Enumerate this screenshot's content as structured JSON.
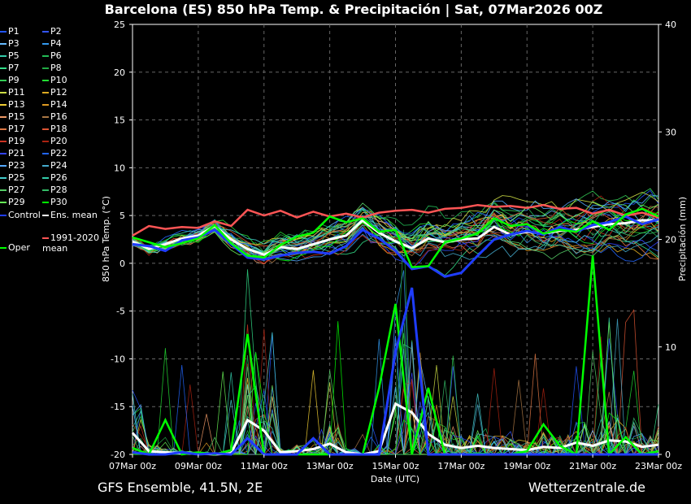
{
  "title": "Barcelona  (ES)  850 hPa Temp. & Precipitación | Sat, 07Mar2026 00Z",
  "footer": {
    "model": "GFS Ensemble, 41.5N, 2E",
    "site": "Wetterzentrale.de"
  },
  "legend": {
    "members": [
      "P1",
      "P2",
      "P3",
      "P4",
      "P5",
      "P6",
      "P7",
      "P8",
      "P9",
      "P10",
      "P11",
      "P12",
      "P13",
      "P14",
      "P15",
      "P16",
      "P17",
      "P18",
      "P19",
      "P20",
      "P21",
      "P22",
      "P23",
      "P24",
      "P25",
      "P26",
      "P27",
      "P28",
      "P29",
      "P30"
    ],
    "member_colors": [
      "#2255ff",
      "#3355ff",
      "#66bbff",
      "#3399ee",
      "#33ccaa",
      "#22bb55",
      "#33dd88",
      "#22aa44",
      "#33cc55",
      "#22dd33",
      "#ccdd44",
      "#ddaa22",
      "#eecc33",
      "#dd9922",
      "#ee9966",
      "#aa7744",
      "#dd7744",
      "#dd5533",
      "#cc3322",
      "#aa2211",
      "#3344ff",
      "#2266ff",
      "#55aaff",
      "#44aacc",
      "#44cccc",
      "#33ccaa",
      "#55cc66",
      "#33bb66",
      "#66ee55",
      "#00ff00"
    ],
    "control": "Control",
    "mean": "Ens. mean",
    "clim": "1991-2020 mean",
    "oper": "Oper",
    "colors": {
      "control": "#1f3dff",
      "mean": "#ffffff",
      "clim": "#ff5555",
      "oper": "#00ff00"
    }
  },
  "chart_data": {
    "type": "line",
    "xlabel": "Date (UTC)",
    "ylabel": "850 hPa Temp. (°C)",
    "y2label": "Precipitación (mm)",
    "x_ticks": [
      "07Mar 00z",
      "09Mar 00z",
      "11Mar 00z",
      "13Mar 00z",
      "15Mar 00z",
      "17Mar 00z",
      "19Mar 00z",
      "21Mar 00z",
      "23Mar 00z"
    ],
    "x_range_days": [
      0,
      16
    ],
    "ylim": [
      -20,
      25
    ],
    "y_ticks": [
      -20,
      -15,
      -10,
      -5,
      0,
      5,
      10,
      15,
      20,
      25
    ],
    "y2lim": [
      0,
      40
    ],
    "y2_ticks": [
      0,
      10,
      20,
      30,
      40
    ],
    "grid": true,
    "series_temp": [
      {
        "name": "1991-2020 mean",
        "days": [
          0,
          0.5,
          1,
          1.5,
          2,
          2.5,
          3,
          3.5,
          4,
          4.5,
          5,
          5.5,
          6,
          6.5,
          7,
          7.5,
          8,
          8.5,
          9,
          9.5,
          10,
          10.5,
          11,
          11.5,
          12,
          12.5,
          13,
          13.5,
          14,
          14.5,
          15,
          15.5,
          16
        ],
        "values": [
          2.9,
          3.9,
          3.6,
          3.8,
          3.7,
          4.4,
          3.9,
          5.6,
          5.0,
          5.5,
          4.8,
          5.4,
          4.9,
          5.2,
          4.8,
          5.3,
          5.5,
          5.6,
          5.3,
          5.7,
          5.8,
          6.1,
          5.9,
          6.0,
          5.8,
          6.1,
          5.7,
          5.8,
          5.2,
          5.6,
          5.0,
          5.3,
          4.8
        ]
      },
      {
        "name": "Ens. mean",
        "days": [
          0,
          0.5,
          1,
          1.5,
          2,
          2.5,
          3,
          3.5,
          4,
          4.5,
          5,
          5.5,
          6,
          6.5,
          7,
          7.5,
          8,
          8.5,
          9,
          9.5,
          10,
          10.5,
          11,
          11.5,
          12,
          12.5,
          13,
          13.5,
          14,
          14.5,
          15,
          15.5,
          16
        ],
        "values": [
          2.3,
          1.5,
          2.0,
          2.6,
          2.9,
          3.9,
          2.5,
          1.5,
          0.9,
          1.7,
          1.5,
          2.0,
          2.5,
          2.9,
          4.5,
          3.2,
          2.3,
          1.6,
          2.6,
          2.2,
          2.5,
          2.6,
          3.8,
          3.0,
          3.3,
          3.1,
          3.4,
          3.5,
          3.8,
          4.1,
          4.2,
          4.5,
          4.5
        ]
      },
      {
        "name": "Control",
        "days": [
          0,
          0.5,
          1,
          1.5,
          2,
          2.5,
          3,
          3.5,
          4,
          4.5,
          5,
          5.5,
          6,
          6.5,
          7,
          7.5,
          8,
          8.5,
          9,
          9.5,
          10,
          10.5,
          11,
          11.5,
          12,
          12.5,
          13,
          13.5,
          14,
          14.5,
          15,
          15.5,
          16
        ],
        "values": [
          2.0,
          1.8,
          1.3,
          2.4,
          2.7,
          3.5,
          2.0,
          0.6,
          0.4,
          0.8,
          1.1,
          1.2,
          1.0,
          1.8,
          3.5,
          2.6,
          1.3,
          -0.6,
          -0.3,
          -1.4,
          -1.0,
          0.8,
          2.5,
          3.0,
          3.4,
          3.0,
          3.8,
          3.3,
          4.0,
          4.3,
          4.9,
          4.1,
          4.6
        ]
      },
      {
        "name": "Oper",
        "days": [
          0,
          0.5,
          1,
          1.5,
          2,
          2.5,
          3,
          3.5,
          4,
          4.5,
          5,
          5.5,
          6,
          6.5,
          7,
          7.5,
          8,
          8.5,
          9,
          9.5,
          10,
          10.5,
          11,
          11.5,
          12,
          12.5,
          13,
          13.5,
          14,
          14.5,
          15,
          15.5,
          16
        ],
        "values": [
          2.7,
          2.2,
          1.7,
          2.1,
          2.6,
          4.0,
          2.1,
          0.8,
          0.6,
          1.9,
          2.8,
          3.2,
          4.9,
          4.3,
          4.7,
          3.3,
          3.5,
          -0.4,
          -0.3,
          2.2,
          2.6,
          3.1,
          4.7,
          3.9,
          4.1,
          3.1,
          3.5,
          3.3,
          4.4,
          3.5,
          5.1,
          5.7,
          4.9
        ]
      }
    ],
    "series_precip_mm": [
      {
        "name": "Ens. mean",
        "days": [
          0,
          0.5,
          1,
          1.5,
          2,
          2.5,
          3,
          3.5,
          4,
          4.5,
          5,
          5.5,
          6,
          6.5,
          7,
          7.5,
          8,
          8.5,
          9,
          9.5,
          10,
          10.5,
          11,
          11.5,
          12,
          12.5,
          13,
          13.5,
          14,
          14.5,
          15,
          15.5,
          16
        ],
        "values": [
          2.0,
          0.3,
          0.2,
          0.1,
          0.1,
          0.0,
          0.1,
          3.2,
          2.2,
          0.2,
          0.3,
          0.5,
          1.0,
          0.2,
          0.0,
          0.3,
          4.7,
          3.9,
          1.9,
          0.9,
          0.6,
          0.8,
          0.6,
          0.5,
          0.4,
          0.7,
          0.6,
          1.1,
          0.8,
          1.3,
          1.2,
          0.7,
          0.9
        ]
      },
      {
        "name": "Oper",
        "days": [
          0,
          0.5,
          1,
          1.5,
          2,
          2.5,
          3,
          3.5,
          4,
          4.5,
          5,
          5.5,
          6,
          6.5,
          7,
          7.5,
          8,
          8.5,
          9,
          9.5,
          10,
          10.5,
          11,
          11.5,
          12,
          12.5,
          13,
          13.5,
          14,
          14.5,
          15,
          15.5,
          16
        ],
        "values": [
          0.6,
          0.0,
          3.2,
          0.0,
          0.2,
          0.0,
          0.4,
          11.2,
          0.0,
          0.0,
          0.0,
          0.0,
          0.0,
          0.0,
          0.0,
          6.2,
          14.0,
          0.0,
          6.2,
          0.0,
          0.0,
          0.1,
          0.0,
          0.0,
          0.3,
          2.8,
          0.8,
          0.0,
          18.5,
          0.0,
          1.6,
          0.0,
          0.3
        ]
      },
      {
        "name": "Control",
        "days": [
          0,
          0.5,
          1,
          1.5,
          2,
          2.5,
          3,
          3.5,
          4,
          4.5,
          5,
          5.5,
          6,
          6.5,
          7,
          7.5,
          8,
          8.5,
          9,
          9.5,
          10,
          10.5,
          11,
          11.5,
          12,
          12.5,
          13,
          13.5,
          14,
          14.5,
          15,
          15.5,
          16
        ],
        "values": [
          0.2,
          0.0,
          0.0,
          0.2,
          0.0,
          0.1,
          0.0,
          1.5,
          0.0,
          0.0,
          0.0,
          1.5,
          0.0,
          0.0,
          0.0,
          0.0,
          9.5,
          15.5,
          0.0,
          0.0,
          0.0,
          0.0,
          0.0,
          0.0,
          0.0,
          0.0,
          0.0,
          0.0,
          0.0,
          0.0,
          0.0,
          0.0,
          0.0
        ]
      }
    ]
  }
}
